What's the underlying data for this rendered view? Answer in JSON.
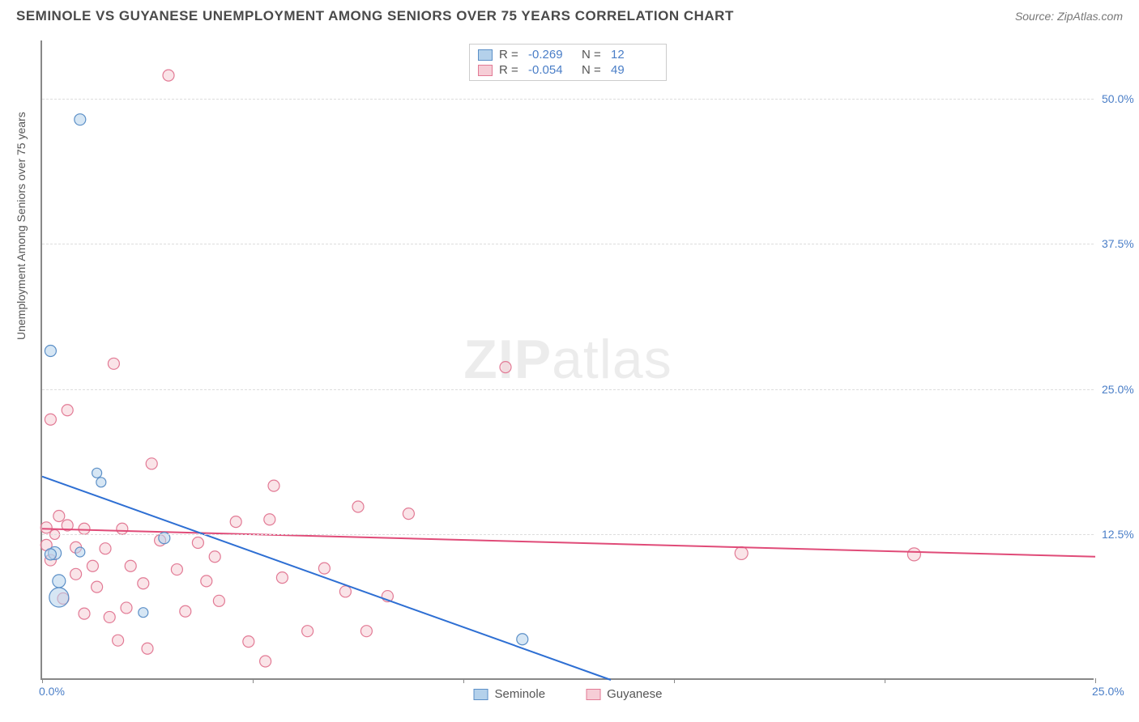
{
  "header": {
    "title": "SEMINOLE VS GUYANESE UNEMPLOYMENT AMONG SENIORS OVER 75 YEARS CORRELATION CHART",
    "source_prefix": "Source: ",
    "source": "ZipAtlas.com"
  },
  "chart": {
    "type": "scatter",
    "ylabel": "Unemployment Among Seniors over 75 years",
    "xlim": [
      0,
      25
    ],
    "ylim": [
      0,
      55
    ],
    "x_ticks": [
      0,
      5,
      10,
      15,
      20,
      25
    ],
    "x_tick_labels": {
      "0": "0.0%",
      "25": "25.0%"
    },
    "y_gridlines": [
      12.5,
      25.0,
      37.5,
      50.0
    ],
    "y_tick_labels": {
      "12.5": "12.5%",
      "25": "25.0%",
      "37.5": "37.5%",
      "50": "50.0%"
    },
    "watermark": {
      "bold": "ZIP",
      "rest": "atlas"
    },
    "background_color": "#ffffff",
    "grid_color": "#dddddd",
    "axis_color": "#888888",
    "tick_label_color": "#4a7ec7",
    "label_fontsize": 14,
    "title_fontsize": 17
  },
  "series": {
    "seminole": {
      "label": "Seminole",
      "fill": "#b4d1eb",
      "stroke": "#5b8fc7",
      "r_value": "-0.269",
      "n_value": "12",
      "trend": {
        "x1": 0,
        "y1": 17.5,
        "x2": 13.5,
        "y2": 0,
        "color": "#2e6fd3",
        "width": 2
      },
      "points": [
        {
          "x": 0.2,
          "y": 28.3,
          "r": 7
        },
        {
          "x": 0.9,
          "y": 48.2,
          "r": 7
        },
        {
          "x": 0.3,
          "y": 10.9,
          "r": 8
        },
        {
          "x": 0.4,
          "y": 7.1,
          "r": 12
        },
        {
          "x": 1.3,
          "y": 17.8,
          "r": 6
        },
        {
          "x": 1.4,
          "y": 17.0,
          "r": 6
        },
        {
          "x": 0.2,
          "y": 10.8,
          "r": 7
        },
        {
          "x": 2.9,
          "y": 12.2,
          "r": 7
        },
        {
          "x": 2.4,
          "y": 5.8,
          "r": 6
        },
        {
          "x": 11.4,
          "y": 3.5,
          "r": 7
        },
        {
          "x": 0.9,
          "y": 11.0,
          "r": 6
        },
        {
          "x": 0.4,
          "y": 8.5,
          "r": 8
        }
      ]
    },
    "guyanese": {
      "label": "Guyanese",
      "fill": "#f6cdd6",
      "stroke": "#e27a95",
      "r_value": "-0.054",
      "n_value": "49",
      "trend": {
        "x1": 0,
        "y1": 13.0,
        "x2": 25,
        "y2": 10.6,
        "color": "#e04b78",
        "width": 2
      },
      "points": [
        {
          "x": 3.0,
          "y": 52.0,
          "r": 7
        },
        {
          "x": 1.7,
          "y": 27.2,
          "r": 7
        },
        {
          "x": 0.6,
          "y": 23.2,
          "r": 7
        },
        {
          "x": 0.2,
          "y": 22.4,
          "r": 7
        },
        {
          "x": 2.6,
          "y": 18.6,
          "r": 7
        },
        {
          "x": 5.5,
          "y": 16.7,
          "r": 7
        },
        {
          "x": 7.5,
          "y": 14.9,
          "r": 7
        },
        {
          "x": 8.7,
          "y": 14.3,
          "r": 7
        },
        {
          "x": 11.0,
          "y": 26.9,
          "r": 7
        },
        {
          "x": 4.6,
          "y": 13.6,
          "r": 7
        },
        {
          "x": 3.7,
          "y": 11.8,
          "r": 7
        },
        {
          "x": 5.4,
          "y": 13.8,
          "r": 7
        },
        {
          "x": 4.1,
          "y": 10.6,
          "r": 7
        },
        {
          "x": 3.2,
          "y": 9.5,
          "r": 7
        },
        {
          "x": 2.4,
          "y": 8.3,
          "r": 7
        },
        {
          "x": 2.8,
          "y": 12.0,
          "r": 7
        },
        {
          "x": 1.9,
          "y": 13.0,
          "r": 7
        },
        {
          "x": 2.1,
          "y": 9.8,
          "r": 7
        },
        {
          "x": 2.0,
          "y": 6.2,
          "r": 7
        },
        {
          "x": 1.5,
          "y": 11.3,
          "r": 7
        },
        {
          "x": 1.2,
          "y": 9.8,
          "r": 7
        },
        {
          "x": 1.0,
          "y": 13.0,
          "r": 7
        },
        {
          "x": 0.8,
          "y": 11.4,
          "r": 7
        },
        {
          "x": 0.4,
          "y": 14.1,
          "r": 7
        },
        {
          "x": 0.6,
          "y": 13.3,
          "r": 7
        },
        {
          "x": 0.1,
          "y": 13.1,
          "r": 7
        },
        {
          "x": 0.1,
          "y": 11.6,
          "r": 7
        },
        {
          "x": 0.2,
          "y": 10.3,
          "r": 7
        },
        {
          "x": 0.8,
          "y": 9.1,
          "r": 7
        },
        {
          "x": 1.3,
          "y": 8.0,
          "r": 7
        },
        {
          "x": 0.5,
          "y": 7.0,
          "r": 7
        },
        {
          "x": 1.0,
          "y": 5.7,
          "r": 7
        },
        {
          "x": 1.6,
          "y": 5.4,
          "r": 7
        },
        {
          "x": 1.8,
          "y": 3.4,
          "r": 7
        },
        {
          "x": 2.5,
          "y": 2.7,
          "r": 7
        },
        {
          "x": 3.4,
          "y": 5.9,
          "r": 7
        },
        {
          "x": 3.9,
          "y": 8.5,
          "r": 7
        },
        {
          "x": 4.2,
          "y": 6.8,
          "r": 7
        },
        {
          "x": 4.9,
          "y": 3.3,
          "r": 7
        },
        {
          "x": 5.7,
          "y": 8.8,
          "r": 7
        },
        {
          "x": 5.3,
          "y": 1.6,
          "r": 7
        },
        {
          "x": 6.3,
          "y": 4.2,
          "r": 7
        },
        {
          "x": 6.7,
          "y": 9.6,
          "r": 7
        },
        {
          "x": 7.2,
          "y": 7.6,
          "r": 7
        },
        {
          "x": 8.2,
          "y": 7.2,
          "r": 7
        },
        {
          "x": 7.7,
          "y": 4.2,
          "r": 7
        },
        {
          "x": 16.6,
          "y": 10.9,
          "r": 8
        },
        {
          "x": 20.7,
          "y": 10.8,
          "r": 8
        },
        {
          "x": 0.3,
          "y": 12.5,
          "r": 6
        }
      ]
    }
  },
  "legend_bottom": [
    {
      "key": "seminole"
    },
    {
      "key": "guyanese"
    }
  ]
}
